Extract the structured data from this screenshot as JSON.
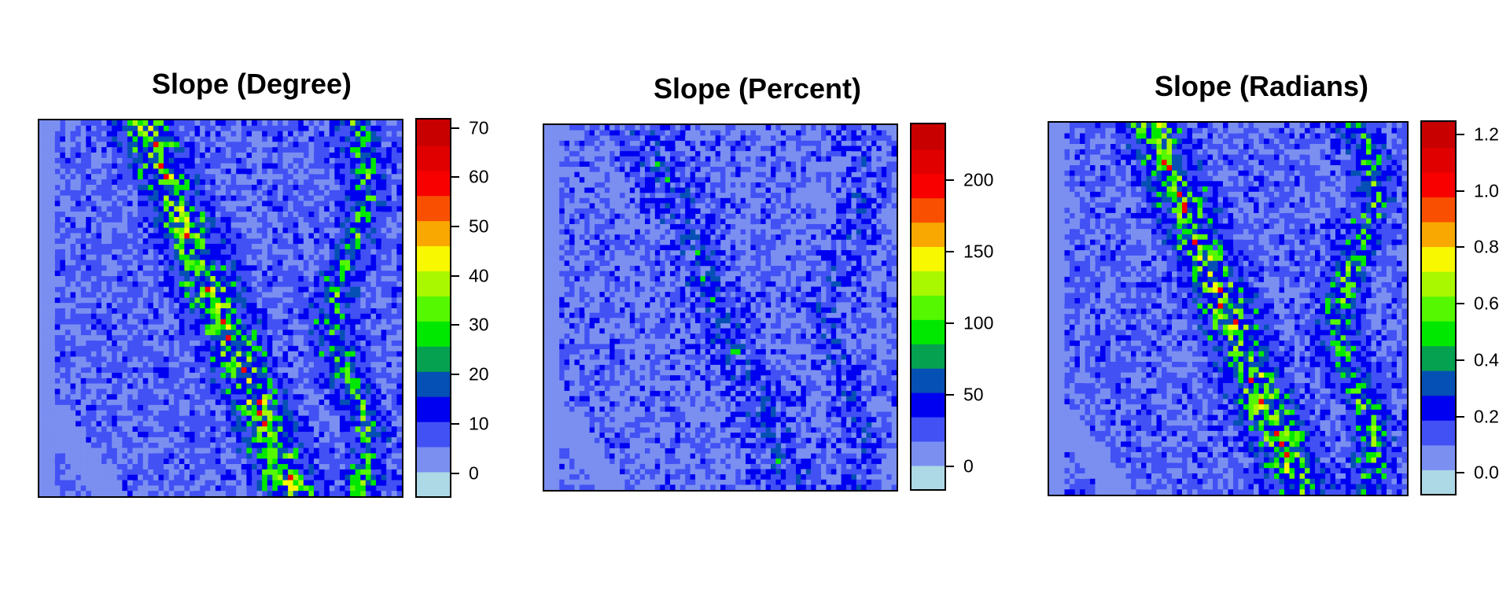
{
  "chart_data": [
    {
      "type": "heatmap",
      "title": "Slope (Degree)",
      "legend": {
        "placement": "right",
        "range": [
          -5,
          72
        ],
        "colors": [
          "#add8e6",
          "#7b8ff0",
          "#4251f4",
          "#0000f0",
          "#0550b4",
          "#05a050",
          "#00e800",
          "#55f800",
          "#aaf800",
          "#f8f800",
          "#f8a800",
          "#f85000",
          "#f80000",
          "#e00000",
          "#c80000"
        ],
        "ticks": [
          "0",
          "10",
          "20",
          "30",
          "40",
          "50",
          "60",
          "70"
        ],
        "tick_values": [
          0,
          10,
          20,
          30,
          40,
          50,
          60,
          70
        ]
      }
    },
    {
      "type": "heatmap",
      "title": "Slope (Percent)",
      "legend": {
        "placement": "right",
        "range": [
          -17,
          240
        ],
        "colors": [
          "#add8e6",
          "#7b8ff0",
          "#4251f4",
          "#0000f0",
          "#0550b4",
          "#05a050",
          "#00e800",
          "#55f800",
          "#aaf800",
          "#f8f800",
          "#f8a800",
          "#f85000",
          "#f80000",
          "#e00000",
          "#c80000"
        ],
        "ticks": [
          "0",
          "50",
          "100",
          "150",
          "200"
        ],
        "tick_values": [
          0,
          50,
          100,
          150,
          200
        ]
      }
    },
    {
      "type": "heatmap",
      "title": "Slope (Radians)",
      "legend": {
        "placement": "right",
        "range": [
          -0.08,
          1.25
        ],
        "colors": [
          "#add8e6",
          "#7b8ff0",
          "#4251f4",
          "#0000f0",
          "#0550b4",
          "#05a050",
          "#00e800",
          "#55f800",
          "#aaf800",
          "#f8f800",
          "#f8a800",
          "#f85000",
          "#f80000",
          "#e00000",
          "#c80000"
        ],
        "ticks": [
          "0.0",
          "0.2",
          "0.4",
          "0.6",
          "0.8",
          "1.0",
          "1.2"
        ],
        "tick_values": [
          0.0,
          0.2,
          0.4,
          0.6,
          0.8,
          1.0,
          1.2
        ]
      }
    }
  ]
}
